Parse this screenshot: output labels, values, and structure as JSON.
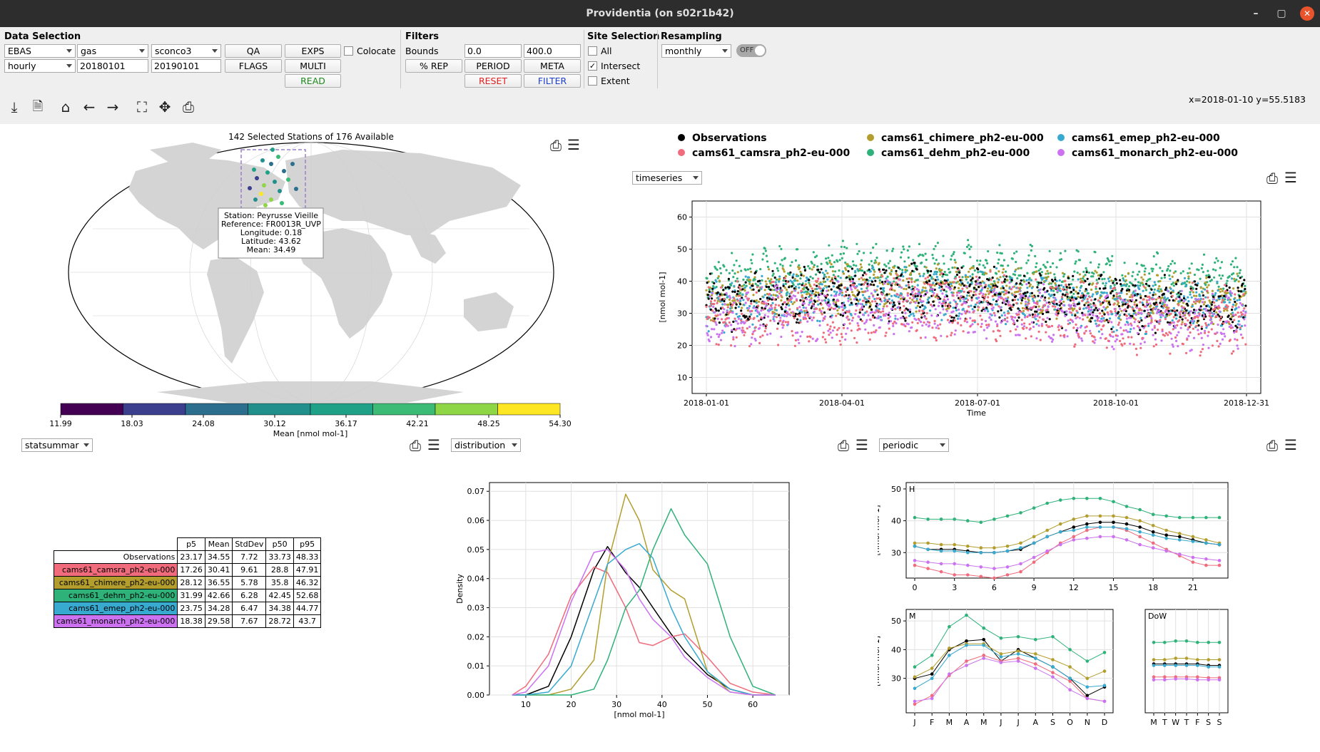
{
  "window": {
    "title": "Providentia (on s02r1b42)",
    "min": "–",
    "max": "▢",
    "close": "✕"
  },
  "data_selection": {
    "title": "Data Selection",
    "network": "EBAS",
    "species_group": "gas",
    "species": "sconco3",
    "resolution": "hourly",
    "start_date": "20180101",
    "end_date": "20190101",
    "qa": "QA",
    "flags": "FLAGS",
    "exps": "EXPS",
    "multi": "MULTI",
    "read": "READ",
    "colocate": "Colocate"
  },
  "filters": {
    "title": "Filters",
    "bounds_label": "Bounds",
    "lower": "0.0",
    "upper": "400.0",
    "rep": "% REP",
    "period": "PERIOD",
    "meta": "META",
    "reset": "RESET",
    "filter": "FILTER"
  },
  "site_selection": {
    "title": "Site Selection",
    "all": "All",
    "intersect": "Intersect",
    "extent": "Extent",
    "intersect_checked": "✓"
  },
  "resampling": {
    "title": "Resampling",
    "value": "monthly",
    "toggle": "OFF"
  },
  "coords": "x=2018-01-10 y=55.5183",
  "map": {
    "title": "142 Selected Stations of 176 Available",
    "tooltip": [
      "Station: Peyrusse Vieille",
      "Reference: FR0013R_UVP",
      "Longitude: 0.18",
      "Latitude: 43.62",
      "Mean: 34.49"
    ],
    "colorbar_ticks": [
      "11.99",
      "18.03",
      "24.08",
      "30.12",
      "36.17",
      "42.21",
      "48.25",
      "54.30"
    ],
    "colorbar_label": "Mean [nmol mol-1]",
    "colorbar_colors": [
      "#440154",
      "#3b3f8d",
      "#2c6e8e",
      "#21908c",
      "#1fa187",
      "#3bbb75",
      "#8ed645",
      "#fde725"
    ]
  },
  "legend": [
    {
      "name": "Observations",
      "color": "#000000"
    },
    {
      "name": "cams61_camsra_ph2-eu-000",
      "color": "#f06b7c"
    },
    {
      "name": "cams61_chimere_ph2-eu-000",
      "color": "#b29d2d"
    },
    {
      "name": "cams61_dehm_ph2-eu-000",
      "color": "#2fb27a"
    },
    {
      "name": "cams61_emep_ph2-eu-000",
      "color": "#38a9cf"
    },
    {
      "name": "cams61_monarch_ph2-eu-000",
      "color": "#cc72f0"
    }
  ],
  "timeseries": {
    "dropdown": "timeseries",
    "ylabel": "[nmol mol-1]",
    "xlabel": "Time",
    "yticks": [
      "10",
      "20",
      "30",
      "40",
      "50",
      "60"
    ],
    "xticks": [
      "2018-01-01",
      "2018-04-01",
      "2018-07-01",
      "2018-10-01",
      "2018-12-31"
    ]
  },
  "statsummary": {
    "dropdown": "statsummar",
    "headers": [
      "",
      "p5",
      "Mean",
      "StdDev",
      "p50",
      "p95"
    ],
    "rows": [
      {
        "name": "Observations",
        "color": "#ffffff",
        "vals": [
          "23.17",
          "34.55",
          "7.72",
          "33.73",
          "48.33"
        ]
      },
      {
        "name": "cams61_camsra_ph2-eu-000",
        "color": "#f06b7c",
        "vals": [
          "17.26",
          "30.41",
          "9.61",
          "28.8",
          "47.91"
        ]
      },
      {
        "name": "cams61_chimere_ph2-eu-000",
        "color": "#b29d2d",
        "vals": [
          "28.12",
          "36.55",
          "5.78",
          "35.8",
          "46.32"
        ]
      },
      {
        "name": "cams61_dehm_ph2-eu-000",
        "color": "#2fb27a",
        "vals": [
          "31.99",
          "42.66",
          "6.28",
          "42.45",
          "52.68"
        ]
      },
      {
        "name": "cams61_emep_ph2-eu-000",
        "color": "#38a9cf",
        "vals": [
          "23.75",
          "34.28",
          "6.47",
          "34.38",
          "44.77"
        ]
      },
      {
        "name": "cams61_monarch_ph2-eu-000",
        "color": "#cc72f0",
        "vals": [
          "18.38",
          "29.58",
          "7.67",
          "28.72",
          "43.7"
        ]
      }
    ]
  },
  "distribution": {
    "dropdown": "distribution",
    "ylabel": "Density",
    "xlabel": "[nmol mol-1]",
    "yticks": [
      "0.00",
      "0.01",
      "0.02",
      "0.03",
      "0.04",
      "0.05",
      "0.06",
      "0.07"
    ],
    "xticks": [
      "10",
      "20",
      "30",
      "40",
      "50",
      "60"
    ]
  },
  "periodic": {
    "dropdown": "periodic",
    "ylabel": "[nmol mol-1]",
    "h_label": "H",
    "m_label": "M",
    "dow_label": "DoW",
    "h_yticks": [
      "30",
      "40",
      "50"
    ],
    "h_xticks": [
      "0",
      "3",
      "6",
      "9",
      "12",
      "15",
      "18",
      "21"
    ],
    "m_yticks": [
      "30",
      "40",
      "50"
    ],
    "m_xticks": [
      "J",
      "F",
      "M",
      "A",
      "M",
      "J",
      "J",
      "A",
      "S",
      "O",
      "N",
      "D"
    ],
    "dow_xticks": [
      "M",
      "T",
      "W",
      "T",
      "F",
      "S",
      "S"
    ]
  },
  "chart_data": [
    {
      "type": "scatter",
      "title": "",
      "xlabel": "Time",
      "ylabel": "[nmol mol-1]",
      "ylim": [
        5,
        65
      ],
      "xlim": [
        "2018-01-01",
        "2018-12-31"
      ],
      "series": [
        {
          "name": "Observations",
          "mean": 34.55
        },
        {
          "name": "cams61_camsra_ph2-eu-000",
          "mean": 30.41
        },
        {
          "name": "cams61_chimere_ph2-eu-000",
          "mean": 36.55
        },
        {
          "name": "cams61_dehm_ph2-eu-000",
          "mean": 42.66
        },
        {
          "name": "cams61_emep_ph2-eu-000",
          "mean": 34.28
        },
        {
          "name": "cams61_monarch_ph2-eu-000",
          "mean": 29.58
        }
      ]
    },
    {
      "type": "line",
      "title": "",
      "xlabel": "[nmol mol-1]",
      "ylabel": "Density",
      "xlim": [
        2,
        68
      ],
      "ylim": [
        0,
        0.073
      ],
      "x": [
        7,
        10,
        15,
        20,
        25,
        28,
        32,
        35,
        38,
        42,
        45,
        50,
        55,
        60,
        65
      ],
      "series": [
        {
          "name": "Observations",
          "values": [
            0,
            0,
            0.003,
            0.02,
            0.043,
            0.051,
            0.042,
            0.037,
            0.03,
            0.021,
            0.015,
            0.007,
            0.002,
            0,
            0
          ]
        },
        {
          "name": "cams61_camsra_ph2-eu-000",
          "values": [
            0,
            0.003,
            0.014,
            0.034,
            0.044,
            0.042,
            0.03,
            0.018,
            0.017,
            0.02,
            0.021,
            0.013,
            0.004,
            0.001,
            0
          ]
        },
        {
          "name": "cams61_chimere_ph2-eu-000",
          "values": [
            0,
            0,
            0,
            0.002,
            0.012,
            0.045,
            0.069,
            0.06,
            0.043,
            0.036,
            0.033,
            0.008,
            0.001,
            0,
            0
          ]
        },
        {
          "name": "cams61_dehm_ph2-eu-000",
          "values": [
            0,
            0,
            0,
            0,
            0.002,
            0.012,
            0.03,
            0.036,
            0.05,
            0.064,
            0.055,
            0.045,
            0.02,
            0.003,
            0
          ]
        },
        {
          "name": "cams61_emep_ph2-eu-000",
          "values": [
            0,
            0,
            0.001,
            0.01,
            0.032,
            0.045,
            0.05,
            0.052,
            0.047,
            0.03,
            0.02,
            0.008,
            0.002,
            0,
            0
          ]
        },
        {
          "name": "cams61_monarch_ph2-eu-000",
          "values": [
            0,
            0.001,
            0.01,
            0.032,
            0.049,
            0.05,
            0.043,
            0.033,
            0.026,
            0.02,
            0.013,
            0.006,
            0.001,
            0,
            0
          ]
        }
      ]
    },
    {
      "type": "line",
      "title": "",
      "xlabel": "H",
      "ylabel": "[nmol mol-1]",
      "ylim": [
        22,
        52
      ],
      "x": [
        0,
        1,
        2,
        3,
        4,
        5,
        6,
        7,
        8,
        9,
        10,
        11,
        12,
        13,
        14,
        15,
        16,
        17,
        18,
        19,
        20,
        21,
        22,
        23
      ],
      "series": [
        {
          "name": "Observations",
          "values": [
            32,
            31,
            31,
            31,
            30.5,
            30,
            30,
            30.5,
            31,
            33,
            35,
            36.5,
            38,
            39,
            39.5,
            39.5,
            39,
            38,
            36.5,
            35.5,
            35,
            34,
            33,
            32.5
          ]
        },
        {
          "name": "cams61_camsra_ph2-eu-000",
          "values": [
            26,
            25,
            24,
            23,
            23,
            22.5,
            22,
            23,
            24,
            27,
            30,
            33,
            35,
            37,
            38,
            38,
            37,
            35,
            33,
            31,
            29,
            27,
            26,
            26
          ]
        },
        {
          "name": "cams61_chimere_ph2-eu-000",
          "values": [
            33,
            33,
            32.5,
            32.5,
            32,
            31.5,
            31.5,
            32,
            33,
            35,
            37,
            39,
            40.5,
            41.5,
            41.5,
            41.5,
            41,
            40,
            38.5,
            37,
            36,
            35,
            34,
            33
          ]
        },
        {
          "name": "cams61_dehm_ph2-eu-000",
          "values": [
            41,
            40.5,
            40.5,
            40.5,
            40,
            39.5,
            40.5,
            41.5,
            42.5,
            44,
            45.5,
            46.5,
            47,
            47,
            47,
            46,
            44.5,
            43.5,
            42,
            41.5,
            41,
            41,
            41,
            41
          ]
        },
        {
          "name": "cams61_emep_ph2-eu-000",
          "values": [
            32,
            31,
            30.5,
            30.5,
            30,
            30,
            30,
            30.5,
            31.5,
            33,
            35,
            36.5,
            37,
            38,
            38,
            38,
            37.5,
            36.5,
            35.5,
            34.5,
            34,
            33.5,
            33,
            32.5
          ]
        },
        {
          "name": "cams61_monarch_ph2-eu-000",
          "values": [
            27.5,
            27,
            26.5,
            26.5,
            26,
            25.5,
            25,
            25.5,
            26.5,
            28.5,
            30.5,
            32.5,
            34,
            34.5,
            35,
            35,
            34,
            32.5,
            31.5,
            30.5,
            29.5,
            28.5,
            28,
            27.5
          ]
        }
      ]
    },
    {
      "type": "line",
      "title": "",
      "xlabel": "M",
      "ylabel": "[nmol mol-1]",
      "ylim": [
        18,
        54
      ],
      "categories": [
        "J",
        "F",
        "M",
        "A",
        "M",
        "J",
        "J",
        "A",
        "S",
        "O",
        "N",
        "D"
      ],
      "series": [
        {
          "name": "Observations",
          "values": [
            30,
            31.5,
            40,
            43,
            43.5,
            36,
            40,
            37,
            34,
            30,
            24,
            27
          ]
        },
        {
          "name": "cams61_camsra_ph2-eu-000",
          "values": [
            21,
            24,
            31,
            36,
            38,
            36,
            37,
            35,
            32,
            29,
            23,
            22
          ]
        },
        {
          "name": "cams61_chimere_ph2-eu-000",
          "values": [
            30.5,
            33.5,
            40.5,
            42,
            42,
            38.5,
            39.5,
            38.5,
            36.5,
            34,
            30,
            32.5
          ]
        },
        {
          "name": "cams61_dehm_ph2-eu-000",
          "values": [
            34,
            38,
            48,
            52,
            47.5,
            44,
            44.5,
            43.5,
            44.5,
            40,
            36,
            39
          ]
        },
        {
          "name": "cams61_emep_ph2-eu-000",
          "values": [
            26.5,
            30,
            38,
            41.5,
            41.5,
            37.5,
            38.5,
            37,
            34,
            30,
            27,
            27.5
          ]
        },
        {
          "name": "cams61_monarch_ph2-eu-000",
          "values": [
            22,
            23,
            31.5,
            34.5,
            37,
            35.5,
            36,
            33.5,
            30.5,
            26,
            23,
            22
          ]
        }
      ]
    },
    {
      "type": "line",
      "title": "",
      "xlabel": "DoW",
      "ylabel": "",
      "ylim": [
        18,
        54
      ],
      "categories": [
        "M",
        "T",
        "W",
        "T",
        "F",
        "S",
        "S"
      ],
      "series": [
        {
          "name": "Observations",
          "values": [
            35,
            35,
            35,
            35,
            35,
            34.5,
            34.5
          ]
        },
        {
          "name": "cams61_camsra_ph2-eu-000",
          "values": [
            30.5,
            30.5,
            30.5,
            30.5,
            30.5,
            30.2,
            30.2
          ]
        },
        {
          "name": "cams61_chimere_ph2-eu-000",
          "values": [
            36.5,
            36.5,
            37,
            37,
            36.5,
            36.5,
            36.5
          ]
        },
        {
          "name": "cams61_dehm_ph2-eu-000",
          "values": [
            42.5,
            42.5,
            43,
            43,
            42.5,
            42.5,
            42.5
          ]
        },
        {
          "name": "cams61_emep_ph2-eu-000",
          "values": [
            34.5,
            34.5,
            34.5,
            34.5,
            34.5,
            34,
            34
          ]
        },
        {
          "name": "cams61_monarch_ph2-eu-000",
          "values": [
            29.5,
            29.5,
            29.8,
            29.8,
            29.5,
            29.5,
            29.5
          ]
        }
      ]
    }
  ]
}
